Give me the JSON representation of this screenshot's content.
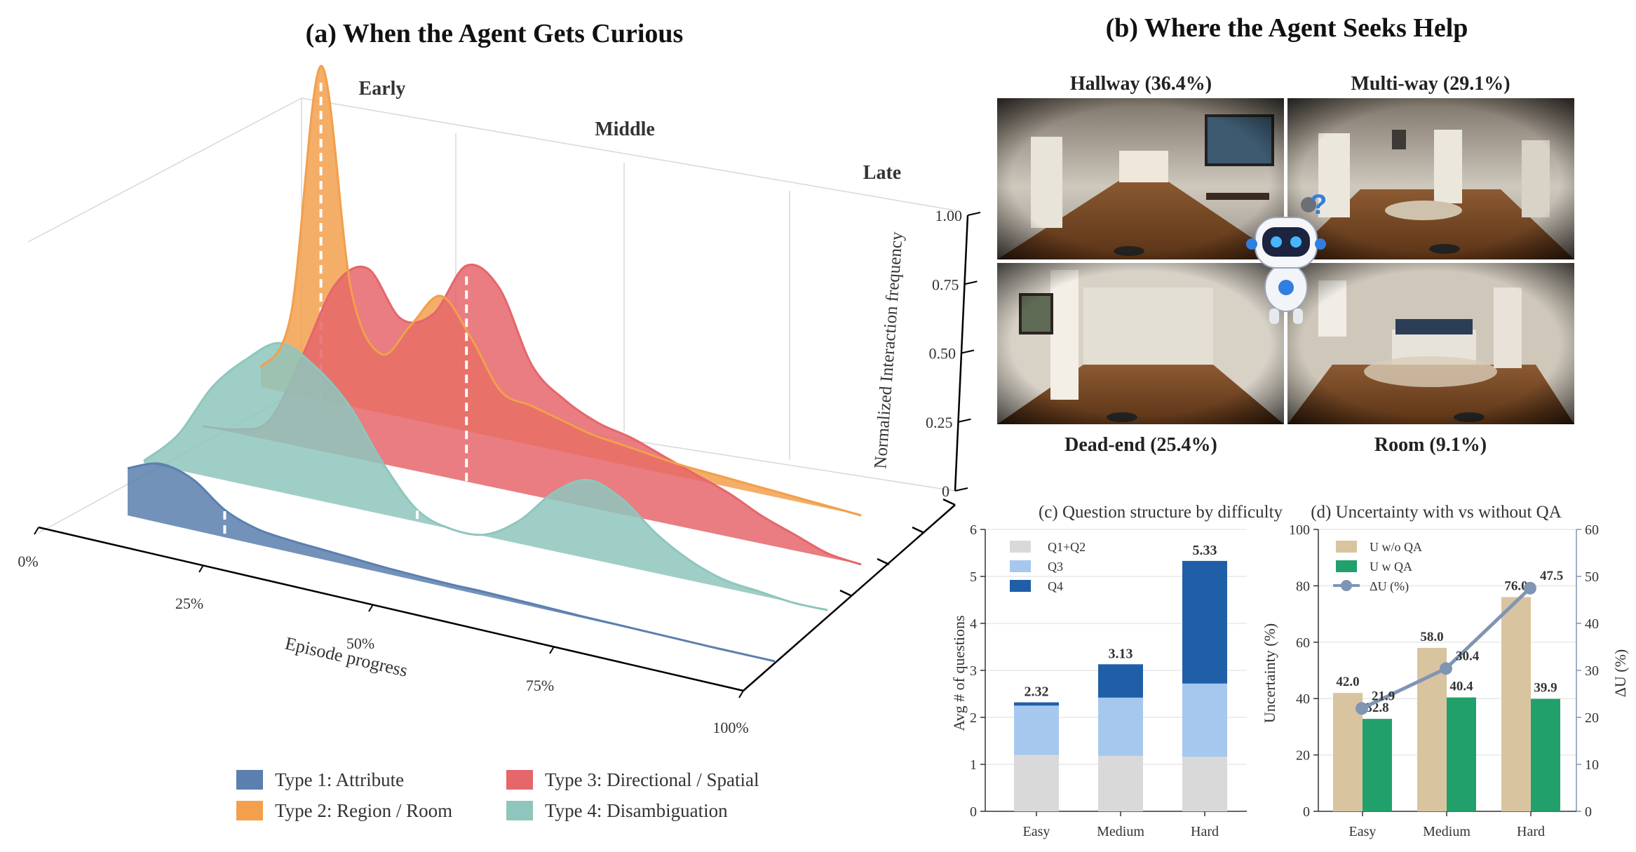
{
  "panel_a": {
    "title": "(a) When the Agent Gets Curious",
    "stage_labels": [
      "Early",
      "Middle",
      "Late"
    ],
    "x_axis_label": "Episode progress",
    "x_ticks": [
      "0%",
      "25%",
      "50%",
      "75%",
      "100%"
    ],
    "z_axis_label": "Normalized Interaction frequency",
    "z_ticks": [
      "0",
      "0.25",
      "0.50",
      "0.75",
      "1.00"
    ],
    "legend": [
      {
        "label": "Type 1: Attribute",
        "color": "#5b7fae"
      },
      {
        "label": "Type 2: Region / Room",
        "color": "#f2a04d"
      },
      {
        "label": "Type 3: Directional / Spatial",
        "color": "#e5666b"
      },
      {
        "label": "Type 4: Disambiguation",
        "color": "#8ec6bd"
      }
    ]
  },
  "panel_b": {
    "title": "(b) Where the Agent Seeks Help",
    "locations": [
      {
        "label": "Hallway (36.4%)",
        "icon": "hallway-photo"
      },
      {
        "label": "Multi-way (29.1%)",
        "icon": "multi-way-photo"
      },
      {
        "label": "Dead-end (25.4%)",
        "icon": "dead-end-photo"
      },
      {
        "label": "Room (9.1%)",
        "icon": "room-photo"
      }
    ],
    "robot_icon": "robot-question-icon"
  },
  "chart_data": [
    {
      "id": "a",
      "type": "area",
      "title": "(a) When the Agent Gets Curious",
      "xlabel": "Episode progress",
      "zlabel": "Normalized Interaction frequency",
      "x": [
        0,
        5,
        10,
        15,
        20,
        25,
        30,
        35,
        40,
        45,
        50,
        55,
        60,
        65,
        70,
        75,
        80,
        85,
        90,
        95,
        100
      ],
      "xlim": [
        0,
        100
      ],
      "zlim": [
        0,
        1
      ],
      "series": [
        {
          "name": "Type 1: Attribute",
          "color": "#5b7fae",
          "values": [
            0.12,
            0.15,
            0.13,
            0.07,
            0.04,
            0.03,
            0.025,
            0.02,
            0.015,
            0.012,
            0.01,
            0.01,
            0.008,
            0.006,
            0.004,
            0.003,
            0.002,
            0.001,
            0,
            0,
            0
          ],
          "median": 15
        },
        {
          "name": "Type 2: Region / Room",
          "color": "#f2a04d",
          "values": [
            0.05,
            0.2,
            0.85,
            0.3,
            0.15,
            0.24,
            0.33,
            0.24,
            0.12,
            0.1,
            0.08,
            0.06,
            0.05,
            0.04,
            0.03,
            0.025,
            0.02,
            0.015,
            0.01,
            0.005,
            0
          ],
          "median": 10
        },
        {
          "name": "Type 3: Directional / Spatial",
          "color": "#e5666b",
          "values": [
            0,
            0.01,
            0.05,
            0.23,
            0.43,
            0.49,
            0.38,
            0.41,
            0.55,
            0.51,
            0.33,
            0.26,
            0.22,
            0.2,
            0.17,
            0.14,
            0.11,
            0.07,
            0.04,
            0.01,
            0
          ],
          "median": 40
        },
        {
          "name": "Type 4: Disambiguation",
          "color": "#8ec6bd",
          "values": [
            0.005,
            0.09,
            0.23,
            0.32,
            0.38,
            0.34,
            0.26,
            0.13,
            0.03,
            0,
            0.005,
            0.06,
            0.15,
            0.2,
            0.17,
            0.1,
            0.05,
            0.02,
            0.01,
            0,
            0
          ],
          "median": 40
        }
      ]
    },
    {
      "id": "c",
      "type": "bar",
      "stacked": true,
      "title": "(c) Question structure by difficulty",
      "ylabel": "Avg # of questions",
      "categories": [
        "Easy",
        "Medium",
        "Hard"
      ],
      "ylim": [
        0,
        6
      ],
      "y_ticks": [
        "0",
        "1",
        "2",
        "3",
        "4",
        "5",
        "6"
      ],
      "series": [
        {
          "name": "Q1+Q2",
          "color": "#d9d9d9",
          "values": [
            1.2,
            1.18,
            1.16
          ]
        },
        {
          "name": "Q3",
          "color": "#a6c8ef",
          "values": [
            1.05,
            1.24,
            1.56
          ]
        },
        {
          "name": "Q4",
          "color": "#1f5fa8",
          "values": [
            0.07,
            0.71,
            2.61
          ]
        }
      ],
      "totals": [
        "2.32",
        "3.13",
        "5.33"
      ],
      "legend_position": "top-left",
      "grid": true
    },
    {
      "id": "d",
      "type": "bar",
      "title": "(d) Uncertainty with vs without QA",
      "ylabel": "Uncertainty (%)",
      "y2label": "ΔU (%)",
      "categories": [
        "Easy",
        "Medium",
        "Hard"
      ],
      "ylim": [
        0,
        100
      ],
      "y2lim": [
        0,
        60
      ],
      "y_ticks": [
        "0",
        "20",
        "40",
        "60",
        "80",
        "100"
      ],
      "y2_ticks": [
        "0",
        "10",
        "20",
        "30",
        "40",
        "50",
        "60"
      ],
      "series": [
        {
          "name": "U w/o QA",
          "color": "#d9c4a0",
          "values": [
            42.0,
            58.0,
            76.0
          ],
          "labels": [
            "42.0",
            "58.0",
            "76.0"
          ]
        },
        {
          "name": "U w QA",
          "color": "#21a06c",
          "values": [
            32.8,
            40.4,
            39.9
          ],
          "labels": [
            "32.8",
            "40.4",
            "39.9"
          ]
        },
        {
          "name": "ΔU (%)",
          "color": "#7f95b3",
          "axis": "right",
          "kind": "line",
          "values": [
            21.9,
            30.4,
            47.5
          ],
          "labels": [
            "21.9",
            "30.4",
            "47.5"
          ]
        }
      ],
      "legend_position": "top-left",
      "grid": true
    }
  ]
}
